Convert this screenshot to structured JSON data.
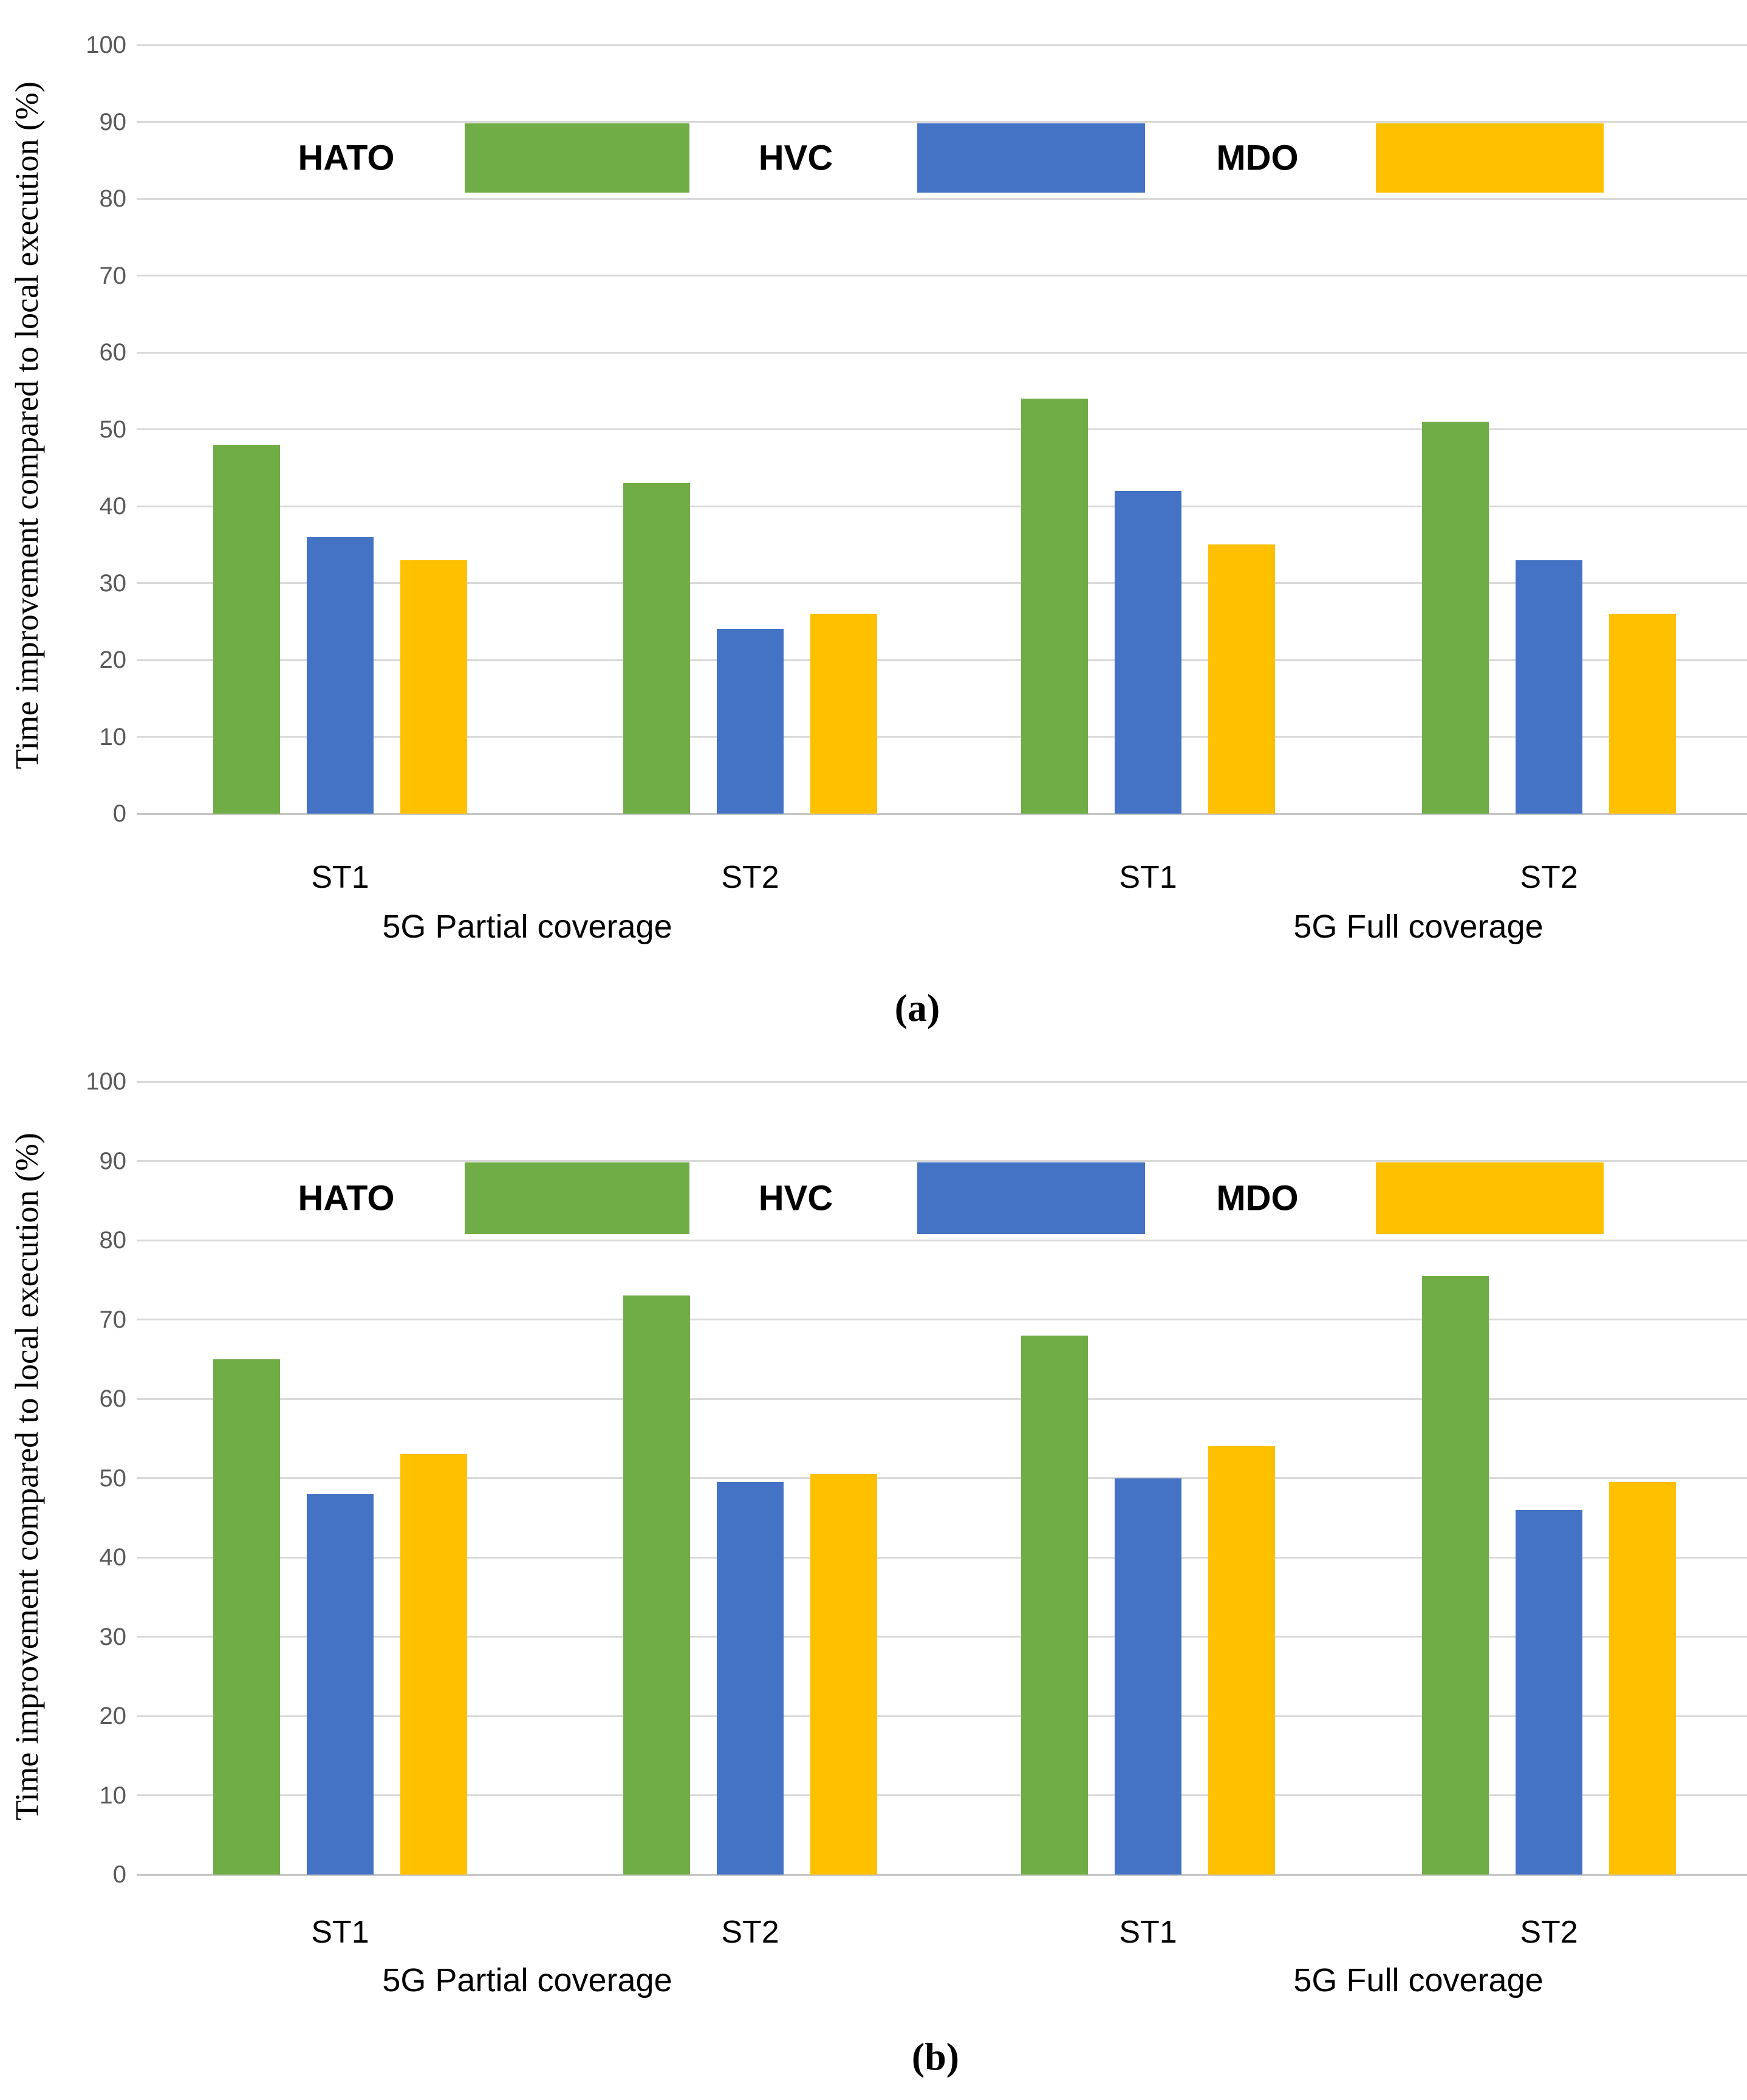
{
  "colors": {
    "hato_green": "#70AD47",
    "hvc_blue": "#4472C4",
    "mdo_yellow": "#FFC000",
    "gridline": "#D9D9D9",
    "axis_baseline": "#C6C6C6",
    "tick_text": "#595959",
    "label_text": "#000000"
  },
  "chart_data": [
    {
      "id": "a",
      "type": "bar",
      "caption": "(a)",
      "title": "",
      "xlabel": "",
      "ylabel": "Time improvement compared to local execution (%)",
      "ylim": [
        0,
        100
      ],
      "y_ticks": [
        0,
        10,
        20,
        30,
        40,
        50,
        60,
        70,
        80,
        90,
        100
      ],
      "grid": true,
      "legend_position": "top-center-inside",
      "categories": [
        "ST1",
        "ST2",
        "ST1",
        "ST2"
      ],
      "group_labels": [
        "5G Partial coverage",
        "5G Full coverage"
      ],
      "series": [
        {
          "name": "HATO",
          "color": "#70AD47",
          "values": [
            48,
            43,
            54,
            51
          ]
        },
        {
          "name": "HVC",
          "color": "#4472C4",
          "values": [
            36,
            24,
            42,
            33
          ]
        },
        {
          "name": "MDO",
          "color": "#FFC000",
          "values": [
            33,
            26,
            35,
            26
          ]
        }
      ]
    },
    {
      "id": "b",
      "type": "bar",
      "caption": "(b)",
      "title": "",
      "xlabel": "",
      "ylabel": "Time improvement compared to local execution (%)",
      "ylim": [
        0,
        100
      ],
      "y_ticks": [
        0,
        10,
        20,
        30,
        40,
        50,
        60,
        70,
        80,
        90,
        100
      ],
      "grid": true,
      "legend_position": "top-center-inside",
      "categories": [
        "ST1",
        "ST2",
        "ST1",
        "ST2"
      ],
      "group_labels": [
        "5G Partial coverage",
        "5G Full coverage"
      ],
      "series": [
        {
          "name": "HATO",
          "color": "#70AD47",
          "values": [
            65,
            73,
            68,
            75.5
          ]
        },
        {
          "name": "HVC",
          "color": "#4472C4",
          "values": [
            48,
            49.5,
            50,
            46
          ]
        },
        {
          "name": "MDO",
          "color": "#FFC000",
          "values": [
            53,
            50.5,
            54,
            49.5
          ]
        }
      ]
    }
  ]
}
